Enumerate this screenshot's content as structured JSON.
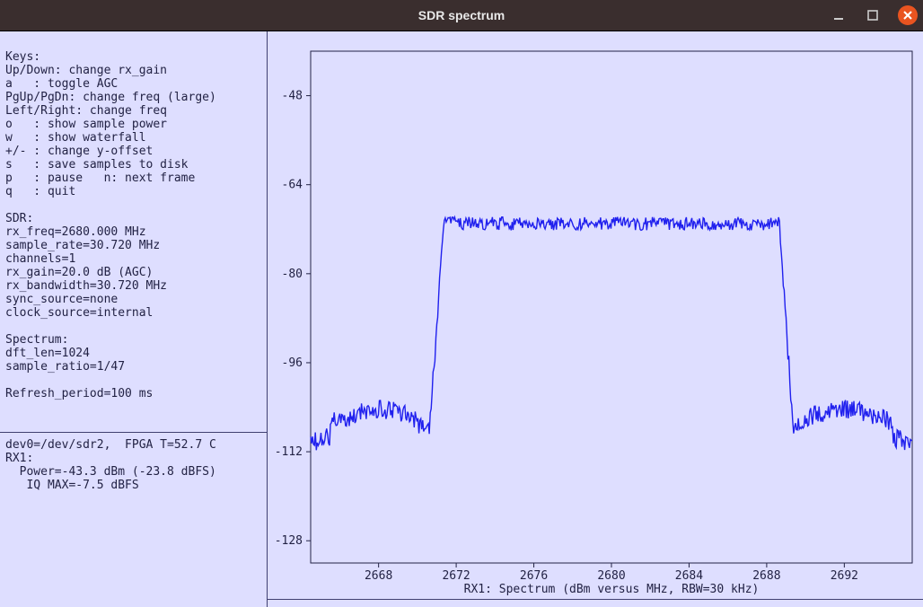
{
  "window": {
    "title": "SDR spectrum"
  },
  "keys_header": "Keys:",
  "keys": [
    "Up/Down: change rx_gain",
    "a   : toggle AGC",
    "PgUp/PgDn: change freq (large)",
    "Left/Right: change freq",
    "o   : show sample power",
    "w   : show waterfall",
    "+/- : change y-offset",
    "s   : save samples to disk",
    "p   : pause   n: next frame",
    "q   : quit"
  ],
  "sdr_header": "SDR:",
  "sdr": [
    "rx_freq=2680.000 MHz",
    "sample_rate=30.720 MHz",
    "channels=1",
    "rx_gain=20.0 dB (AGC)",
    "rx_bandwidth=30.720 MHz",
    "sync_source=none",
    "clock_source=internal"
  ],
  "spectrum_header": "Spectrum:",
  "spectrum": [
    "dft_len=1024",
    "sample_ratio=1/47"
  ],
  "refresh": "Refresh_period=100 ms",
  "status": [
    "dev0=/dev/sdr2,  FPGA T=52.7 C",
    "RX1:",
    "  Power=-43.3 dBm (-23.8 dBFS)",
    "   IQ MAX=-7.5 dBFS"
  ],
  "chart": {
    "type": "line",
    "xlabel": "RX1: Spectrum (dBm versus MHz, RBW=30 kHz)",
    "xlim": [
      2664.5,
      2695.5
    ],
    "ylim": [
      -132,
      -40
    ],
    "xticks": [
      2668,
      2672,
      2676,
      2680,
      2684,
      2688,
      2692
    ],
    "yticks": [
      -48,
      -64,
      -80,
      -96,
      -112,
      -128
    ],
    "line_color": "#2020ee",
    "bg_color": "#dedeff",
    "axis_color": "#222244",
    "tick_fontsize": 13,
    "label_fontsize": 13,
    "noise_floor_db": -107,
    "signal_top_db": -71,
    "band_left_mhz": 2671.0,
    "band_right_mhz": 2689.0,
    "noise_jitter_db": 1.8,
    "signal_jitter_db": 1.2
  }
}
